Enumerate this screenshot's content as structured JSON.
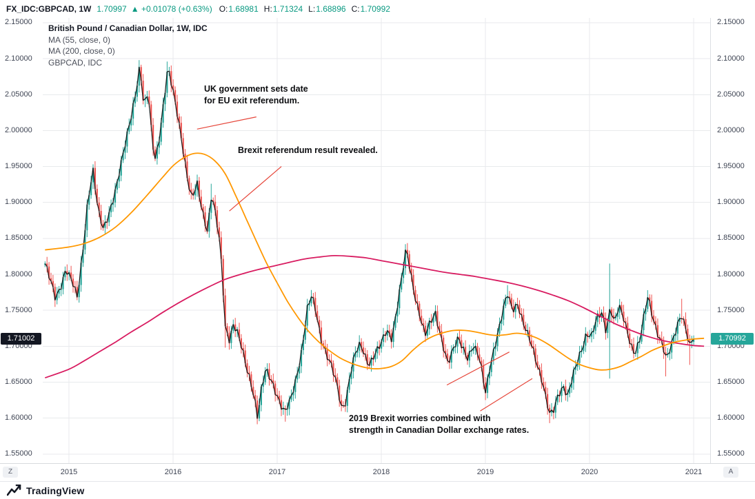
{
  "header": {
    "symbol": "FX_IDC:GBPCAD, 1W",
    "last_price": "1.70997",
    "change_arrow": "▲",
    "change_text": "+0.01078 (+0.63%)",
    "ohlc": [
      {
        "label": "O",
        "value": "1.68981"
      },
      {
        "label": "H",
        "value": "1.71324"
      },
      {
        "label": "L",
        "value": "1.68896"
      },
      {
        "label": "C",
        "value": "1.70992"
      }
    ]
  },
  "legend": {
    "title": "British Pound / Canadian Dollar, 1W, IDC",
    "ma55": "MA (55, close, 0)",
    "ma200": "MA (200, close, 0)",
    "overlay": "GBPCAD, IDC"
  },
  "axis_buttons": {
    "left": "Z",
    "right": "A"
  },
  "price_tags": {
    "left": {
      "text": "1.71002",
      "price": 1.71002
    },
    "right": {
      "text": "1.70992",
      "price": 1.70992
    }
  },
  "footer": {
    "brand": "TradingView"
  },
  "colors": {
    "teal_text": "#089981",
    "up": "#26a69a",
    "down": "#ef5350",
    "ma55": "#ff9800",
    "ma200": "#d81b60",
    "close_line": "#141414",
    "grid": "#e8eaec",
    "annotation_red": "#e64539",
    "tag_left_bg": "#131722",
    "tag_right_bg": "#26a69a"
  },
  "chart_data": {
    "type": "candlestick",
    "title": "British Pound / Canadian Dollar, 1W, IDC",
    "x_range": [
      2014.748,
      2021.159
    ],
    "y_range": [
      1.5373,
      2.1567
    ],
    "last_close": 1.70992,
    "weekly_step_years": 0.019231,
    "candles_start": 2014.77,
    "candles_end": 2021.005,
    "up_color": "#26a69a",
    "down_color": "#ef5350",
    "close_line_color": "#141414",
    "x_ticks": [
      {
        "t": 2015,
        "label": "2015"
      },
      {
        "t": 2016,
        "label": "2016"
      },
      {
        "t": 2017,
        "label": "2017"
      },
      {
        "t": 2018,
        "label": "2018"
      },
      {
        "t": 2019,
        "label": "2019"
      },
      {
        "t": 2020,
        "label": "2020"
      },
      {
        "t": 2021,
        "label": "2021"
      }
    ],
    "y_ticks": [
      {
        "p": 2.15,
        "label": "2.15000"
      },
      {
        "p": 2.1,
        "label": "2.10000"
      },
      {
        "p": 2.05,
        "label": "2.05000"
      },
      {
        "p": 2.0,
        "label": "2.00000"
      },
      {
        "p": 1.95,
        "label": "1.95000"
      },
      {
        "p": 1.9,
        "label": "1.90000"
      },
      {
        "p": 1.85,
        "label": "1.85000"
      },
      {
        "p": 1.8,
        "label": "1.80000"
      },
      {
        "p": 1.75,
        "label": "1.75000"
      },
      {
        "p": 1.7,
        "label": "1.70000"
      },
      {
        "p": 1.65,
        "label": "1.65000"
      },
      {
        "p": 1.6,
        "label": "1.60000"
      },
      {
        "p": 1.55,
        "label": "1.55000"
      }
    ],
    "close_keypoints": [
      [
        2014.77,
        1.815
      ],
      [
        2014.82,
        1.79
      ],
      [
        2014.87,
        1.765
      ],
      [
        2014.92,
        1.785
      ],
      [
        2014.97,
        1.81
      ],
      [
        2015.03,
        1.788
      ],
      [
        2015.08,
        1.765
      ],
      [
        2015.13,
        1.83
      ],
      [
        2015.18,
        1.905
      ],
      [
        2015.23,
        1.945
      ],
      [
        2015.28,
        1.885
      ],
      [
        2015.33,
        1.862
      ],
      [
        2015.4,
        1.895
      ],
      [
        2015.46,
        1.925
      ],
      [
        2015.52,
        1.965
      ],
      [
        2015.58,
        2.01
      ],
      [
        2015.64,
        2.055
      ],
      [
        2015.68,
        2.09
      ],
      [
        2015.72,
        2.03
      ],
      [
        2015.76,
        2.052
      ],
      [
        2015.8,
        1.985
      ],
      [
        2015.83,
        1.962
      ],
      [
        2015.87,
        1.995
      ],
      [
        2015.91,
        2.04
      ],
      [
        2015.95,
        2.085
      ],
      [
        2016.0,
        2.052
      ],
      [
        2016.05,
        2.018
      ],
      [
        2016.1,
        1.972
      ],
      [
        2016.14,
        1.93
      ],
      [
        2016.18,
        1.902
      ],
      [
        2016.23,
        1.925
      ],
      [
        2016.28,
        1.89
      ],
      [
        2016.33,
        1.862
      ],
      [
        2016.37,
        1.912
      ],
      [
        2016.41,
        1.878
      ],
      [
        2016.44,
        1.852
      ],
      [
        2016.47,
        1.805
      ],
      [
        2016.5,
        1.728
      ],
      [
        2016.54,
        1.712
      ],
      [
        2016.58,
        1.732
      ],
      [
        2016.62,
        1.716
      ],
      [
        2016.66,
        1.695
      ],
      [
        2016.7,
        1.672
      ],
      [
        2016.74,
        1.655
      ],
      [
        2016.78,
        1.632
      ],
      [
        2016.81,
        1.602
      ],
      [
        2016.85,
        1.64
      ],
      [
        2016.89,
        1.665
      ],
      [
        2016.93,
        1.656
      ],
      [
        2016.97,
        1.645
      ],
      [
        2017.02,
        1.625
      ],
      [
        2017.07,
        1.606
      ],
      [
        2017.12,
        1.62
      ],
      [
        2017.17,
        1.648
      ],
      [
        2017.23,
        1.692
      ],
      [
        2017.29,
        1.752
      ],
      [
        2017.33,
        1.768
      ],
      [
        2017.37,
        1.748
      ],
      [
        2017.42,
        1.712
      ],
      [
        2017.46,
        1.697
      ],
      [
        2017.52,
        1.672
      ],
      [
        2017.57,
        1.645
      ],
      [
        2017.62,
        1.612
      ],
      [
        2017.66,
        1.626
      ],
      [
        2017.7,
        1.664
      ],
      [
        2017.75,
        1.69
      ],
      [
        2017.8,
        1.7
      ],
      [
        2017.84,
        1.686
      ],
      [
        2017.88,
        1.676
      ],
      [
        2017.93,
        1.69
      ],
      [
        2018.0,
        1.702
      ],
      [
        2018.05,
        1.72
      ],
      [
        2018.1,
        1.712
      ],
      [
        2018.15,
        1.756
      ],
      [
        2018.2,
        1.8
      ],
      [
        2018.24,
        1.834
      ],
      [
        2018.28,
        1.8
      ],
      [
        2018.32,
        1.772
      ],
      [
        2018.37,
        1.746
      ],
      [
        2018.42,
        1.716
      ],
      [
        2018.47,
        1.73
      ],
      [
        2018.52,
        1.744
      ],
      [
        2018.56,
        1.722
      ],
      [
        2018.6,
        1.7
      ],
      [
        2018.64,
        1.676
      ],
      [
        2018.7,
        1.696
      ],
      [
        2018.74,
        1.71
      ],
      [
        2018.78,
        1.7
      ],
      [
        2018.83,
        1.686
      ],
      [
        2018.88,
        1.7
      ],
      [
        2018.93,
        1.686
      ],
      [
        2018.97,
        1.662
      ],
      [
        2019.0,
        1.636
      ],
      [
        2019.04,
        1.672
      ],
      [
        2019.08,
        1.696
      ],
      [
        2019.13,
        1.722
      ],
      [
        2019.17,
        1.748
      ],
      [
        2019.21,
        1.774
      ],
      [
        2019.26,
        1.754
      ],
      [
        2019.31,
        1.76
      ],
      [
        2019.36,
        1.73
      ],
      [
        2019.4,
        1.716
      ],
      [
        2019.45,
        1.7
      ],
      [
        2019.5,
        1.676
      ],
      [
        2019.55,
        1.65
      ],
      [
        2019.58,
        1.626
      ],
      [
        2019.62,
        1.601
      ],
      [
        2019.66,
        1.612
      ],
      [
        2019.7,
        1.636
      ],
      [
        2019.75,
        1.646
      ],
      [
        2019.79,
        1.63
      ],
      [
        2019.84,
        1.656
      ],
      [
        2019.88,
        1.676
      ],
      [
        2019.93,
        1.7
      ],
      [
        2019.97,
        1.72
      ],
      [
        2020.02,
        1.714
      ],
      [
        2020.07,
        1.736
      ],
      [
        2020.12,
        1.746
      ],
      [
        2020.16,
        1.722
      ],
      [
        2020.2,
        1.758
      ],
      [
        2020.24,
        1.732
      ],
      [
        2020.28,
        1.754
      ],
      [
        2020.33,
        1.736
      ],
      [
        2020.38,
        1.712
      ],
      [
        2020.43,
        1.692
      ],
      [
        2020.48,
        1.706
      ],
      [
        2020.53,
        1.744
      ],
      [
        2020.56,
        1.768
      ],
      [
        2020.6,
        1.746
      ],
      [
        2020.65,
        1.722
      ],
      [
        2020.7,
        1.702
      ],
      [
        2020.74,
        1.678
      ],
      [
        2020.79,
        1.702
      ],
      [
        2020.84,
        1.73
      ],
      [
        2020.88,
        1.748
      ],
      [
        2020.92,
        1.728
      ],
      [
        2020.96,
        1.697
      ],
      [
        2021.0,
        1.71
      ]
    ],
    "wick_events": [
      {
        "t": 2015.23,
        "high": 1.953
      },
      {
        "t": 2015.68,
        "high": 2.098
      },
      {
        "t": 2015.95,
        "high": 2.096
      },
      {
        "t": 2016.37,
        "high": 1.926
      },
      {
        "t": 2016.5,
        "low": 1.698
      },
      {
        "t": 2016.81,
        "low": 1.593
      },
      {
        "t": 2017.07,
        "low": 1.595
      },
      {
        "t": 2018.24,
        "high": 1.842
      },
      {
        "t": 2019.0,
        "low": 1.625
      },
      {
        "t": 2019.21,
        "high": 1.785
      },
      {
        "t": 2019.62,
        "low": 1.593
      },
      {
        "t": 2020.2,
        "high": 1.815,
        "low": 1.655
      },
      {
        "t": 2020.56,
        "high": 1.778
      },
      {
        "t": 2020.74,
        "low": 1.658
      },
      {
        "t": 2020.88,
        "high": 1.766
      },
      {
        "t": 2020.96,
        "low": 1.674
      }
    ],
    "series": [
      {
        "name": "MA (55, close, 0)",
        "color": "#ff9800",
        "points": [
          [
            2014.77,
            1.834
          ],
          [
            2015.0,
            1.838
          ],
          [
            2015.15,
            1.843
          ],
          [
            2015.3,
            1.852
          ],
          [
            2015.45,
            1.866
          ],
          [
            2015.6,
            1.886
          ],
          [
            2015.75,
            1.91
          ],
          [
            2015.9,
            1.935
          ],
          [
            2016.0,
            1.951
          ],
          [
            2016.1,
            1.962
          ],
          [
            2016.2,
            1.968
          ],
          [
            2016.3,
            1.967
          ],
          [
            2016.4,
            1.958
          ],
          [
            2016.5,
            1.94
          ],
          [
            2016.6,
            1.91
          ],
          [
            2016.7,
            1.878
          ],
          [
            2016.8,
            1.846
          ],
          [
            2016.9,
            1.815
          ],
          [
            2017.0,
            1.788
          ],
          [
            2017.1,
            1.762
          ],
          [
            2017.2,
            1.74
          ],
          [
            2017.3,
            1.721
          ],
          [
            2017.4,
            1.706
          ],
          [
            2017.5,
            1.694
          ],
          [
            2017.6,
            1.684
          ],
          [
            2017.7,
            1.677
          ],
          [
            2017.8,
            1.672
          ],
          [
            2017.9,
            1.669
          ],
          [
            2018.0,
            1.669
          ],
          [
            2018.1,
            1.672
          ],
          [
            2018.2,
            1.68
          ],
          [
            2018.3,
            1.694
          ],
          [
            2018.4,
            1.706
          ],
          [
            2018.5,
            1.714
          ],
          [
            2018.6,
            1.719
          ],
          [
            2018.7,
            1.722
          ],
          [
            2018.8,
            1.722
          ],
          [
            2018.9,
            1.72
          ],
          [
            2019.0,
            1.717
          ],
          [
            2019.1,
            1.715
          ],
          [
            2019.2,
            1.716
          ],
          [
            2019.3,
            1.718
          ],
          [
            2019.4,
            1.716
          ],
          [
            2019.5,
            1.711
          ],
          [
            2019.6,
            1.703
          ],
          [
            2019.7,
            1.693
          ],
          [
            2019.8,
            1.683
          ],
          [
            2019.9,
            1.675
          ],
          [
            2020.0,
            1.67
          ],
          [
            2020.1,
            1.667
          ],
          [
            2020.2,
            1.668
          ],
          [
            2020.3,
            1.672
          ],
          [
            2020.4,
            1.679
          ],
          [
            2020.5,
            1.686
          ],
          [
            2020.6,
            1.694
          ],
          [
            2020.7,
            1.7
          ],
          [
            2020.8,
            1.705
          ],
          [
            2020.9,
            1.708
          ],
          [
            2021.0,
            1.71
          ],
          [
            2021.1,
            1.711
          ]
        ]
      },
      {
        "name": "MA (200, close, 0)",
        "color": "#d81b60",
        "points": [
          [
            2014.77,
            1.656
          ],
          [
            2015.0,
            1.668
          ],
          [
            2015.15,
            1.68
          ],
          [
            2015.3,
            1.693
          ],
          [
            2015.45,
            1.706
          ],
          [
            2015.6,
            1.72
          ],
          [
            2015.75,
            1.733
          ],
          [
            2015.9,
            1.747
          ],
          [
            2016.05,
            1.76
          ],
          [
            2016.2,
            1.772
          ],
          [
            2016.35,
            1.783
          ],
          [
            2016.5,
            1.793
          ],
          [
            2016.65,
            1.8
          ],
          [
            2016.8,
            1.806
          ],
          [
            2016.95,
            1.811
          ],
          [
            2017.1,
            1.816
          ],
          [
            2017.25,
            1.821
          ],
          [
            2017.4,
            1.824
          ],
          [
            2017.55,
            1.826
          ],
          [
            2017.7,
            1.825
          ],
          [
            2017.85,
            1.823
          ],
          [
            2018.0,
            1.819
          ],
          [
            2018.15,
            1.815
          ],
          [
            2018.3,
            1.811
          ],
          [
            2018.45,
            1.807
          ],
          [
            2018.6,
            1.803
          ],
          [
            2018.75,
            1.8
          ],
          [
            2018.9,
            1.797
          ],
          [
            2019.05,
            1.793
          ],
          [
            2019.2,
            1.789
          ],
          [
            2019.35,
            1.784
          ],
          [
            2019.5,
            1.778
          ],
          [
            2019.65,
            1.771
          ],
          [
            2019.8,
            1.763
          ],
          [
            2019.95,
            1.753
          ],
          [
            2020.1,
            1.742
          ],
          [
            2020.25,
            1.731
          ],
          [
            2020.4,
            1.722
          ],
          [
            2020.55,
            1.714
          ],
          [
            2020.7,
            1.708
          ],
          [
            2020.85,
            1.704
          ],
          [
            2021.0,
            1.701
          ],
          [
            2021.1,
            1.7
          ]
        ]
      }
    ],
    "annotations": [
      {
        "text": [
          "UK government sets date",
          "for EU exit referendum."
        ],
        "t": 2016.3,
        "p": 2.066,
        "lines": [
          [
            2016.23,
            2.002,
            2016.8,
            2.019
          ]
        ]
      },
      {
        "text": [
          "Brexit referendum result revealed."
        ],
        "t": 2016.62,
        "p": 1.98,
        "lines": [
          [
            2016.54,
            1.888,
            2017.04,
            1.95
          ]
        ]
      },
      {
        "text": [
          "2019 Brexit worries combined with",
          "strength in Canadian Dollar exchange rates."
        ],
        "t": 2017.69,
        "p": 1.607,
        "lines": [
          [
            2018.63,
            1.646,
            2019.23,
            1.692
          ],
          [
            2018.95,
            1.61,
            2019.45,
            1.655
          ]
        ]
      }
    ]
  }
}
